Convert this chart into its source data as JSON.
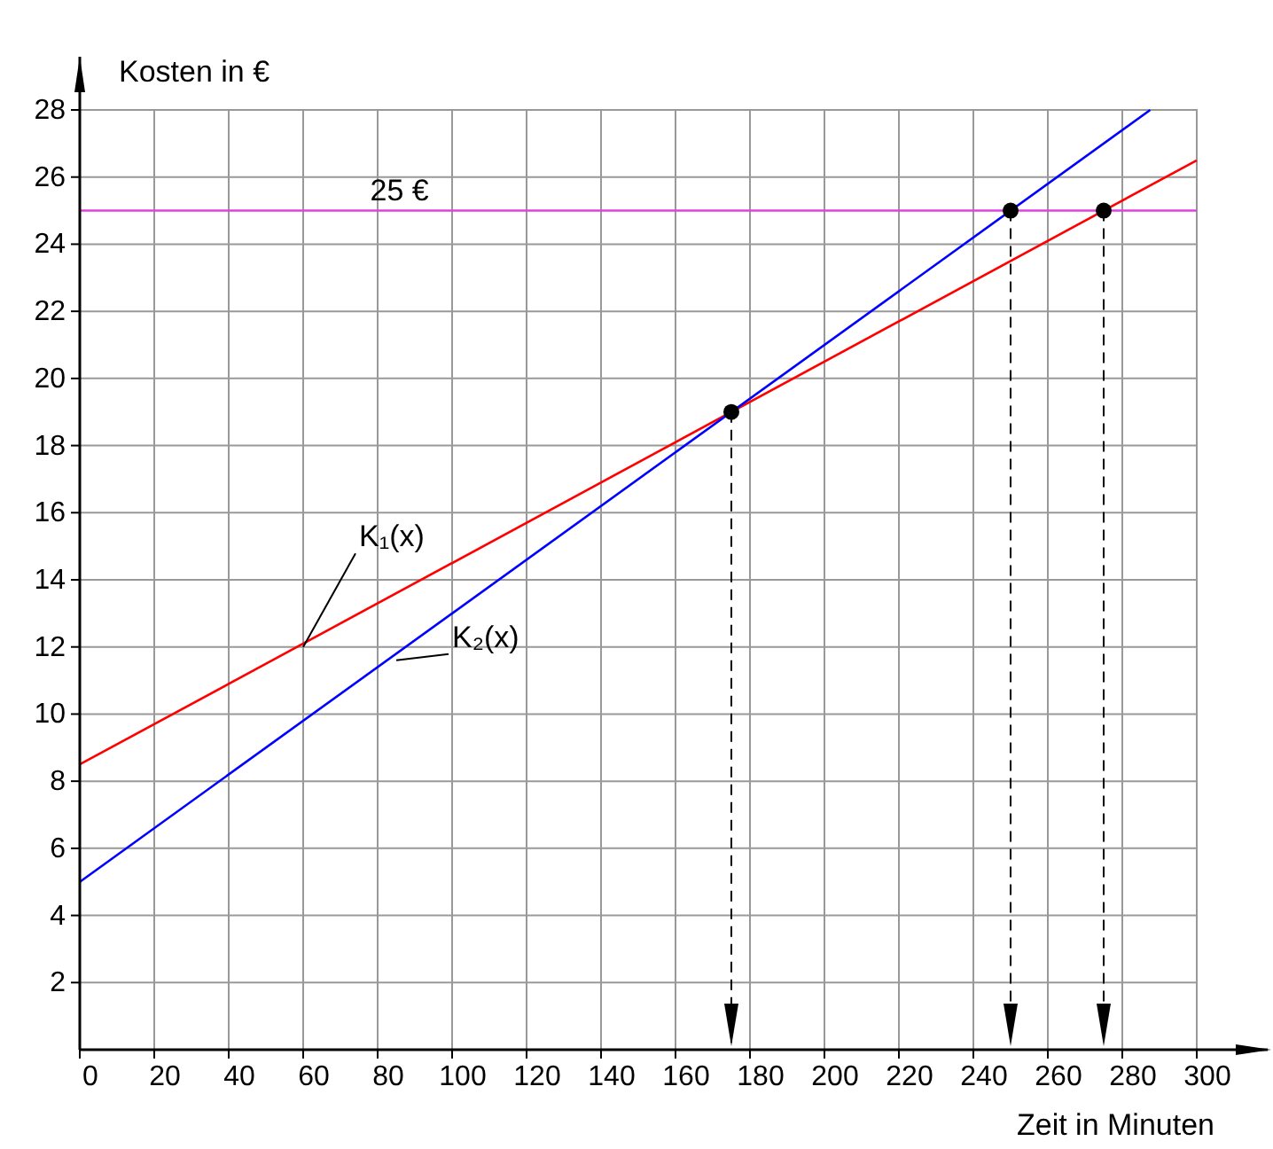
{
  "chart_data": {
    "type": "line",
    "xlabel": "Zeit in Minuten",
    "ylabel": "Kosten in €",
    "xlim": [
      0,
      300
    ],
    "ylim": [
      0,
      28
    ],
    "xticks": [
      0,
      20,
      40,
      60,
      80,
      100,
      120,
      140,
      160,
      180,
      200,
      220,
      240,
      260,
      280,
      300
    ],
    "yticks": [
      2,
      4,
      6,
      8,
      10,
      12,
      14,
      16,
      18,
      20,
      22,
      24,
      26,
      28
    ],
    "grid": true,
    "series": [
      {
        "name": "K₁(x)",
        "color": "#ff0000",
        "x": [
          0,
          300
        ],
        "values": [
          8.5,
          26.5
        ]
      },
      {
        "name": "K₂(x)",
        "color": "#0000ff",
        "x": [
          0,
          287.5
        ],
        "values": [
          5,
          28
        ]
      },
      {
        "type": "scatter",
        "color": "#000000",
        "marker": "circle",
        "x": [
          175,
          250,
          275
        ],
        "values": [
          19,
          25,
          25
        ]
      }
    ],
    "ref_lines": [
      {
        "axis": "y",
        "value": 25,
        "label": "25 €",
        "color": "#e040e0"
      },
      {
        "axis": "x",
        "value": 175,
        "color": "#000000",
        "line_style": "dashed"
      },
      {
        "axis": "x",
        "value": 250,
        "color": "#000000",
        "line_style": "dashed"
      },
      {
        "axis": "x",
        "value": 275,
        "color": "#000000",
        "line_style": "dashed"
      }
    ]
  }
}
